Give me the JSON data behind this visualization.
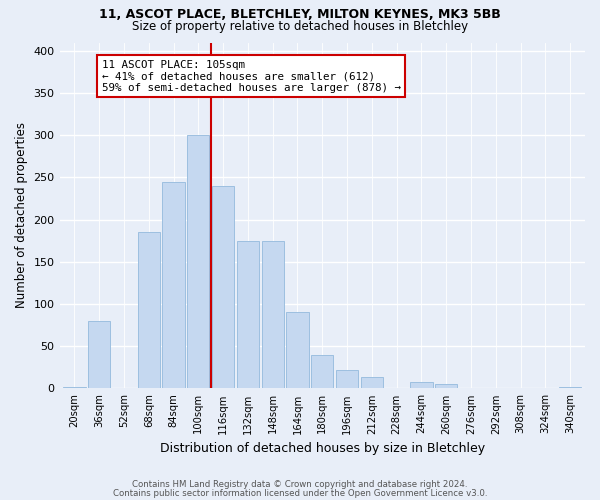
{
  "title1": "11, ASCOT PLACE, BLETCHLEY, MILTON KEYNES, MK3 5BB",
  "title2": "Size of property relative to detached houses in Bletchley",
  "xlabel": "Distribution of detached houses by size in Bletchley",
  "ylabel": "Number of detached properties",
  "footnote1": "Contains HM Land Registry data © Crown copyright and database right 2024.",
  "footnote2": "Contains public sector information licensed under the Open Government Licence v3.0.",
  "categories": [
    "20sqm",
    "36sqm",
    "52sqm",
    "68sqm",
    "84sqm",
    "100sqm",
    "116sqm",
    "132sqm",
    "148sqm",
    "164sqm",
    "180sqm",
    "196sqm",
    "212sqm",
    "228sqm",
    "244sqm",
    "260sqm",
    "276sqm",
    "292sqm",
    "308sqm",
    "324sqm",
    "340sqm"
  ],
  "values": [
    2,
    80,
    0,
    185,
    245,
    300,
    240,
    175,
    175,
    90,
    40,
    22,
    13,
    0,
    8,
    5,
    0,
    0,
    0,
    0,
    2
  ],
  "bar_color": "#c5d8f0",
  "bar_edge_color": "#9dbfe0",
  "property_line_x": 5.5,
  "annotation_text1": "11 ASCOT PLACE: 105sqm",
  "annotation_text2": "← 41% of detached houses are smaller (612)",
  "annotation_text3": "59% of semi-detached houses are larger (878) →",
  "annotation_box_color": "white",
  "annotation_border_color": "#cc0000",
  "vline_color": "#cc0000",
  "ylim": [
    0,
    410
  ],
  "yticks": [
    0,
    50,
    100,
    150,
    200,
    250,
    300,
    350,
    400
  ],
  "background_color": "#e8eef8"
}
